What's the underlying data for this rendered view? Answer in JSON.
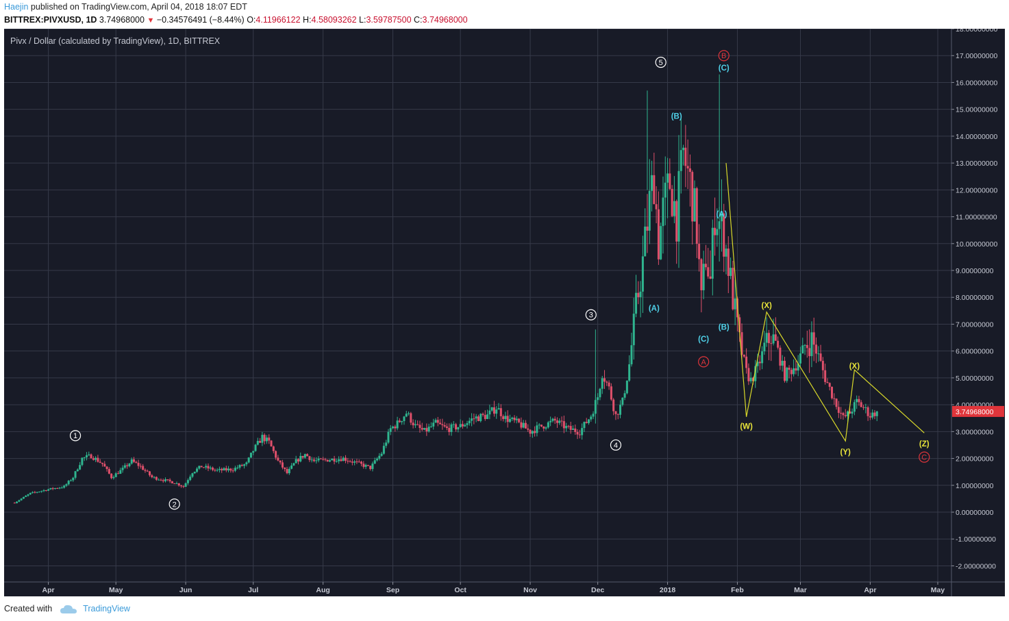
{
  "header": {
    "author": "Haejin",
    "published_text": "published on TradingView.com, April 04, 2018 18:07 EDT",
    "symbol": "BITTREX:PIVXUSD, 1D",
    "last": "3.74968000",
    "change": "−0.34576491 (−8.44%)",
    "ohlc": {
      "o_label": "O:",
      "o": "4.11966122",
      "h_label": "H:",
      "h": "4.58093262",
      "l_label": "L:",
      "l": "3.59787500",
      "c_label": "C:",
      "c": "3.74968000"
    }
  },
  "footer": {
    "created_with": "Created with",
    "brand": "TradingView"
  },
  "chart_data": {
    "type": "candlestick",
    "title": "Pivx / Dollar (calculated by TradingView), 1D, BITTREX",
    "ylim": [
      -2.6,
      18.0
    ],
    "y_ticks": [
      "18.00000000",
      "17.00000000",
      "16.00000000",
      "15.00000000",
      "14.00000000",
      "13.00000000",
      "12.00000000",
      "11.00000000",
      "10.00000000",
      "9.00000000",
      "8.00000000",
      "7.00000000",
      "6.00000000",
      "5.00000000",
      "4.00000000",
      "3.00000000",
      "2.00000000",
      "1.00000000",
      "0.00000000",
      "-1.00000000",
      "-2.00000000"
    ],
    "x_ticks": [
      {
        "label": "Apr",
        "date": "2017-04-01"
      },
      {
        "label": "May",
        "date": "2017-05-01"
      },
      {
        "label": "Jun",
        "date": "2017-06-01"
      },
      {
        "label": "Jul",
        "date": "2017-07-01"
      },
      {
        "label": "Aug",
        "date": "2017-08-01"
      },
      {
        "label": "Sep",
        "date": "2017-09-01"
      },
      {
        "label": "Oct",
        "date": "2017-10-01"
      },
      {
        "label": "Nov",
        "date": "2017-11-01"
      },
      {
        "label": "Dec",
        "date": "2017-12-01"
      },
      {
        "label": "2018",
        "date": "2018-01-01"
      },
      {
        "label": "Feb",
        "date": "2018-02-01"
      },
      {
        "label": "Mar",
        "date": "2018-03-01"
      },
      {
        "label": "Apr",
        "date": "2018-04-01"
      },
      {
        "label": "May",
        "date": "2018-05-01"
      }
    ],
    "close_series": [
      [
        "2017-03-17",
        0.35
      ],
      [
        "2017-03-24",
        0.7
      ],
      [
        "2017-04-01",
        0.85
      ],
      [
        "2017-04-08",
        0.95
      ],
      [
        "2017-04-12",
        1.3
      ],
      [
        "2017-04-16",
        2.0
      ],
      [
        "2017-04-20",
        2.1
      ],
      [
        "2017-04-25",
        1.8
      ],
      [
        "2017-04-29",
        1.3
      ],
      [
        "2017-05-04",
        1.6
      ],
      [
        "2017-05-08",
        1.9
      ],
      [
        "2017-05-12",
        1.7
      ],
      [
        "2017-05-17",
        1.3
      ],
      [
        "2017-05-22",
        1.2
      ],
      [
        "2017-05-27",
        1.1
      ],
      [
        "2017-05-31",
        0.95
      ],
      [
        "2017-06-04",
        1.5
      ],
      [
        "2017-06-08",
        1.7
      ],
      [
        "2017-06-15",
        1.55
      ],
      [
        "2017-06-22",
        1.6
      ],
      [
        "2017-06-28",
        1.8
      ],
      [
        "2017-07-01",
        2.3
      ],
      [
        "2017-07-05",
        2.8
      ],
      [
        "2017-07-08",
        2.6
      ],
      [
        "2017-07-12",
        1.9
      ],
      [
        "2017-07-16",
        1.45
      ],
      [
        "2017-07-20",
        1.9
      ],
      [
        "2017-07-24",
        2.15
      ],
      [
        "2017-07-28",
        1.9
      ],
      [
        "2017-08-03",
        1.95
      ],
      [
        "2017-08-10",
        2.0
      ],
      [
        "2017-08-17",
        1.8
      ],
      [
        "2017-08-22",
        1.65
      ],
      [
        "2017-08-27",
        2.2
      ],
      [
        "2017-08-31",
        3.1
      ],
      [
        "2017-09-03",
        3.3
      ],
      [
        "2017-09-07",
        3.7
      ],
      [
        "2017-09-11",
        3.2
      ],
      [
        "2017-09-15",
        3.0
      ],
      [
        "2017-09-20",
        3.3
      ],
      [
        "2017-09-25",
        3.1
      ],
      [
        "2017-10-01",
        3.2
      ],
      [
        "2017-10-07",
        3.5
      ],
      [
        "2017-10-13",
        3.6
      ],
      [
        "2017-10-17",
        3.9
      ],
      [
        "2017-10-21",
        3.5
      ],
      [
        "2017-10-27",
        3.3
      ],
      [
        "2017-11-01",
        3.0
      ],
      [
        "2017-11-06",
        3.2
      ],
      [
        "2017-11-12",
        3.4
      ],
      [
        "2017-11-18",
        3.1
      ],
      [
        "2017-11-23",
        3.0
      ],
      [
        "2017-11-28",
        3.6
      ],
      [
        "2017-12-01",
        4.3
      ],
      [
        "2017-12-03",
        5.2
      ],
      [
        "2017-12-06",
        4.6
      ],
      [
        "2017-12-09",
        3.6
      ],
      [
        "2017-12-12",
        4.1
      ],
      [
        "2017-12-15",
        5.5
      ],
      [
        "2017-12-18",
        7.6
      ],
      [
        "2017-12-21",
        9.3
      ],
      [
        "2017-12-24",
        11.5
      ],
      [
        "2017-12-26",
        12.5
      ],
      [
        "2017-12-28",
        10.0
      ],
      [
        "2017-12-30",
        11.2
      ],
      [
        "2018-01-02",
        12.3
      ],
      [
        "2018-01-05",
        11.0
      ],
      [
        "2018-01-08",
        13.3
      ],
      [
        "2018-01-10",
        12.6
      ],
      [
        "2018-01-12",
        11.8
      ],
      [
        "2018-01-14",
        10.5
      ],
      [
        "2018-01-16",
        7.8
      ],
      [
        "2018-01-18",
        9.6
      ],
      [
        "2018-01-20",
        8.6
      ],
      [
        "2018-01-22",
        11.2
      ],
      [
        "2018-01-24",
        10.8
      ],
      [
        "2018-01-26",
        10.3
      ],
      [
        "2018-01-28",
        9.2
      ],
      [
        "2018-01-30",
        8.0
      ],
      [
        "2018-02-02",
        6.3
      ],
      [
        "2018-02-05",
        5.2
      ],
      [
        "2018-02-07",
        4.9
      ],
      [
        "2018-02-10",
        5.4
      ],
      [
        "2018-02-13",
        6.1
      ],
      [
        "2018-02-16",
        6.6
      ],
      [
        "2018-02-19",
        6.0
      ],
      [
        "2018-02-22",
        5.1
      ],
      [
        "2018-02-25",
        5.3
      ],
      [
        "2018-02-28",
        5.6
      ],
      [
        "2018-03-03",
        6.2
      ],
      [
        "2018-03-06",
        6.4
      ],
      [
        "2018-03-09",
        5.8
      ],
      [
        "2018-03-12",
        5.0
      ],
      [
        "2018-03-16",
        4.2
      ],
      [
        "2018-03-20",
        3.5
      ],
      [
        "2018-03-23",
        3.7
      ],
      [
        "2018-03-26",
        4.1
      ],
      [
        "2018-03-29",
        3.9
      ],
      [
        "2018-04-01",
        3.6
      ],
      [
        "2018-04-04",
        3.75
      ]
    ],
    "last_price_label": "3.74968000",
    "wave_labels": [
      {
        "text": "1",
        "style": "white-circle",
        "date": "2017-04-13",
        "y": 2.85
      },
      {
        "text": "2",
        "style": "white-circle",
        "date": "2017-05-27",
        "y": 0.3
      },
      {
        "text": "3",
        "style": "white-circle",
        "date": "2017-11-28",
        "y": 7.35
      },
      {
        "text": "4",
        "style": "white-circle",
        "date": "2017-12-09",
        "y": 2.5
      },
      {
        "text": "5",
        "style": "white-circle",
        "date": "2017-12-29",
        "y": 16.75
      },
      {
        "text": "(A)",
        "style": "cyan",
        "date": "2017-12-26",
        "y": 7.6
      },
      {
        "text": "(B)",
        "style": "cyan",
        "date": "2018-01-05",
        "y": 14.75
      },
      {
        "text": "(C)",
        "style": "cyan",
        "date": "2018-01-17",
        "y": 6.45
      },
      {
        "text": "A",
        "style": "red-circle",
        "date": "2018-01-17",
        "y": 5.6
      },
      {
        "text": "(A)",
        "style": "cyan",
        "date": "2018-01-25",
        "y": 11.1
      },
      {
        "text": "(B)",
        "style": "cyan",
        "date": "2018-01-26",
        "y": 6.9
      },
      {
        "text": "B",
        "style": "red-circle",
        "date": "2018-01-26",
        "y": 17.0
      },
      {
        "text": "(C)",
        "style": "cyan",
        "date": "2018-01-26",
        "y": 16.55
      },
      {
        "text": "(W)",
        "style": "yellow",
        "date": "2018-02-05",
        "y": 3.2
      },
      {
        "text": "(X)",
        "style": "yellow",
        "date": "2018-02-14",
        "y": 7.7
      },
      {
        "text": "(Y)",
        "style": "yellow",
        "date": "2018-03-21",
        "y": 2.25
      },
      {
        "text": "(X)",
        "style": "yellow",
        "date": "2018-03-25",
        "y": 5.45
      },
      {
        "text": "(Z)",
        "style": "yellow",
        "date": "2018-04-25",
        "y": 2.55
      },
      {
        "text": "C",
        "style": "red-circle",
        "date": "2018-04-25",
        "y": 2.05
      }
    ],
    "wave_path": {
      "color": "#d9d92a",
      "points": [
        [
          "2018-01-27",
          13.0
        ],
        [
          "2018-02-05",
          3.55
        ],
        [
          "2018-02-14",
          7.45
        ],
        [
          "2018-03-21",
          2.65
        ],
        [
          "2018-03-25",
          5.3
        ],
        [
          "2018-04-25",
          2.95
        ]
      ]
    },
    "colors": {
      "up": "#2fb58f",
      "down": "#e0506b",
      "grid": "#363a49",
      "text": "#c6c9d3"
    }
  }
}
